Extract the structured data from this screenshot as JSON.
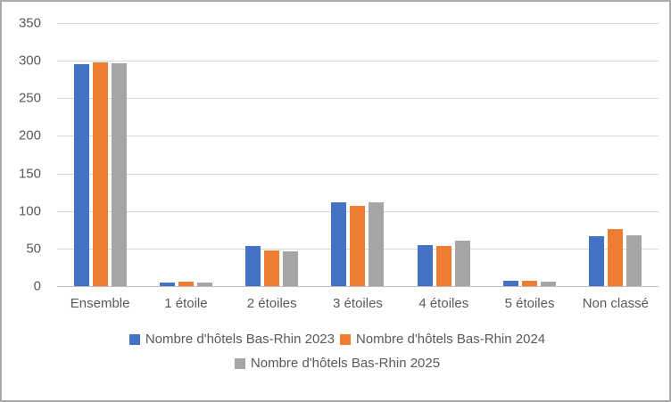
{
  "chart_data": {
    "type": "bar",
    "title": "",
    "categories": [
      "Ensemble",
      "1 étoile",
      "2 étoiles",
      "3 étoiles",
      "4 étoiles",
      "5 étoiles",
      "Non classé"
    ],
    "series": [
      {
        "name": "Nombre d'hôtels Bas-Rhin 2023",
        "color": "#4472C4",
        "values": [
          296,
          5,
          53,
          111,
          54,
          7,
          66
        ]
      },
      {
        "name": "Nombre d'hôtels Bas-Rhin 2024",
        "color": "#ED7D31",
        "values": [
          298,
          6,
          47,
          107,
          53,
          7,
          76
        ]
      },
      {
        "name": "Nombre d'hôtels Bas-Rhin 2025",
        "color": "#A5A5A5",
        "values": [
          297,
          5,
          46,
          112,
          60,
          6,
          68
        ]
      }
    ],
    "ylim": [
      0,
      350
    ],
    "yticks": [
      0,
      50,
      100,
      150,
      200,
      250,
      300,
      350
    ],
    "xlabel": "",
    "ylabel": "",
    "grid": true,
    "legend_position": "bottom",
    "legend_rows": [
      [
        0,
        1
      ],
      [
        2
      ]
    ],
    "colors": {
      "gridline": "#D9D9D9",
      "axis_line": "#BFBFBF",
      "axis_text": "#595959",
      "frame_border": "#ABABAB",
      "background": "#FFFFFF"
    }
  }
}
